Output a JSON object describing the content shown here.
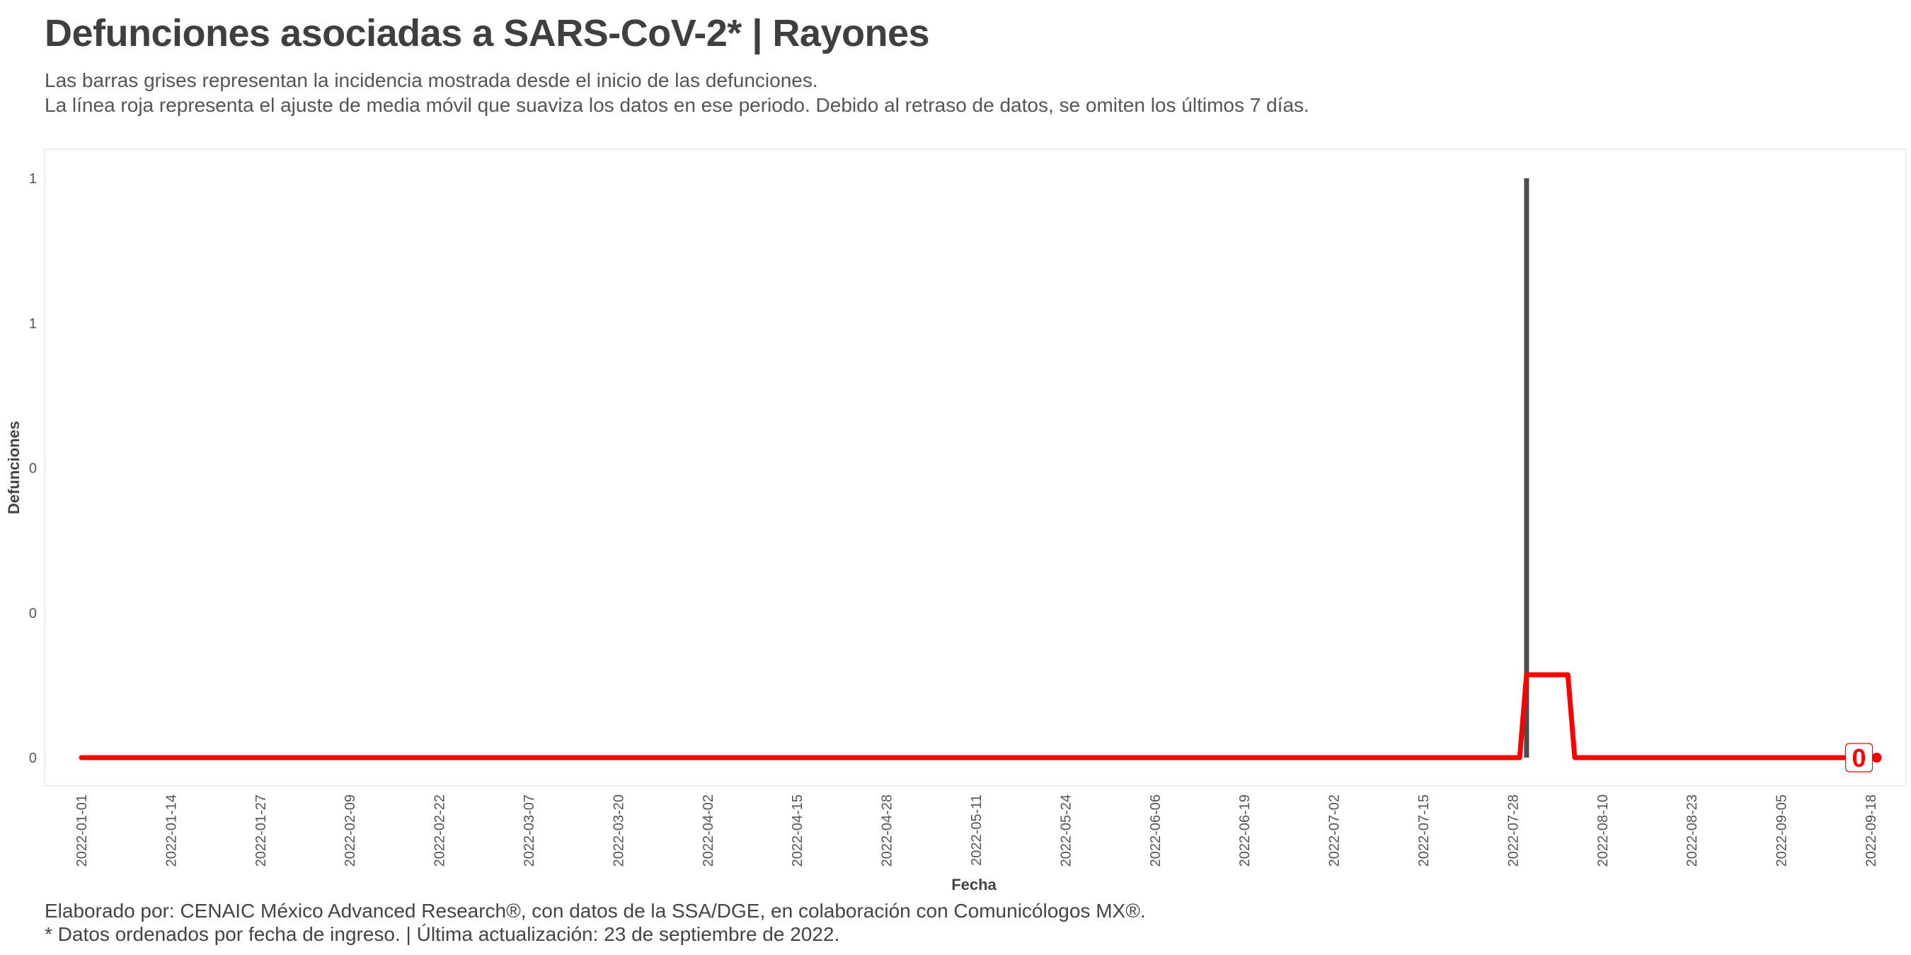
{
  "header": {
    "title": "Defunciones asociadas a SARS-CoV-2* | Rayones",
    "subtitle_line1": "Las barras grises representan la incidencia mostrada desde el inicio de las defunciones.",
    "subtitle_line2": "La línea roja representa el ajuste de media móvil que suaviza los datos en ese periodo. Debido al retraso de datos, se omiten los últimos 7 días."
  },
  "footer": {
    "caption_line1": "Elaborado por: CENAIC México Advanced Research®, con datos de la SSA/DGE, en colaboración con Comunicólogos MX®.",
    "caption_line2": "* Datos ordenados por fecha de ingreso. | Última actualización: 23 de septiembre de 2022."
  },
  "colors": {
    "bar": "#4d4d4d",
    "moving_average": "#ff0000",
    "panel_border": "#e6e6e6"
  },
  "chart_data": {
    "type": "bar",
    "xlabel": "Fecha",
    "ylabel": "Defunciones",
    "xlim": [
      "2022-01-01",
      "2022-09-18"
    ],
    "ylim": [
      0,
      1
    ],
    "y_ticks": [
      0,
      0.25,
      0.5,
      0.75,
      1
    ],
    "y_tick_labels": [
      "0",
      "0",
      "0",
      "1",
      "1"
    ],
    "x_tick_labels": [
      "2022-01-01",
      "2022-01-14",
      "2022-01-27",
      "2022-02-09",
      "2022-02-22",
      "2022-03-07",
      "2022-03-20",
      "2022-04-02",
      "2022-04-15",
      "2022-04-28",
      "2022-05-11",
      "2022-05-24",
      "2022-06-06",
      "2022-06-19",
      "2022-07-02",
      "2022-07-15",
      "2022-07-28",
      "2022-08-10",
      "2022-08-23",
      "2022-09-05",
      "2022-09-18"
    ],
    "bars": [
      {
        "date": "2022-07-30",
        "value": 1
      }
    ],
    "moving_average": [
      {
        "date": "2022-01-01",
        "value": 0
      },
      {
        "date": "2022-07-29",
        "value": 0
      },
      {
        "date": "2022-07-30",
        "value": 0.143
      },
      {
        "date": "2022-08-05",
        "value": 0.143
      },
      {
        "date": "2022-08-06",
        "value": 0
      },
      {
        "date": "2022-09-16",
        "value": 0
      }
    ],
    "end_label": {
      "date": "2022-09-16",
      "value": 0,
      "text": "0"
    },
    "grid": false,
    "legend": "none"
  }
}
